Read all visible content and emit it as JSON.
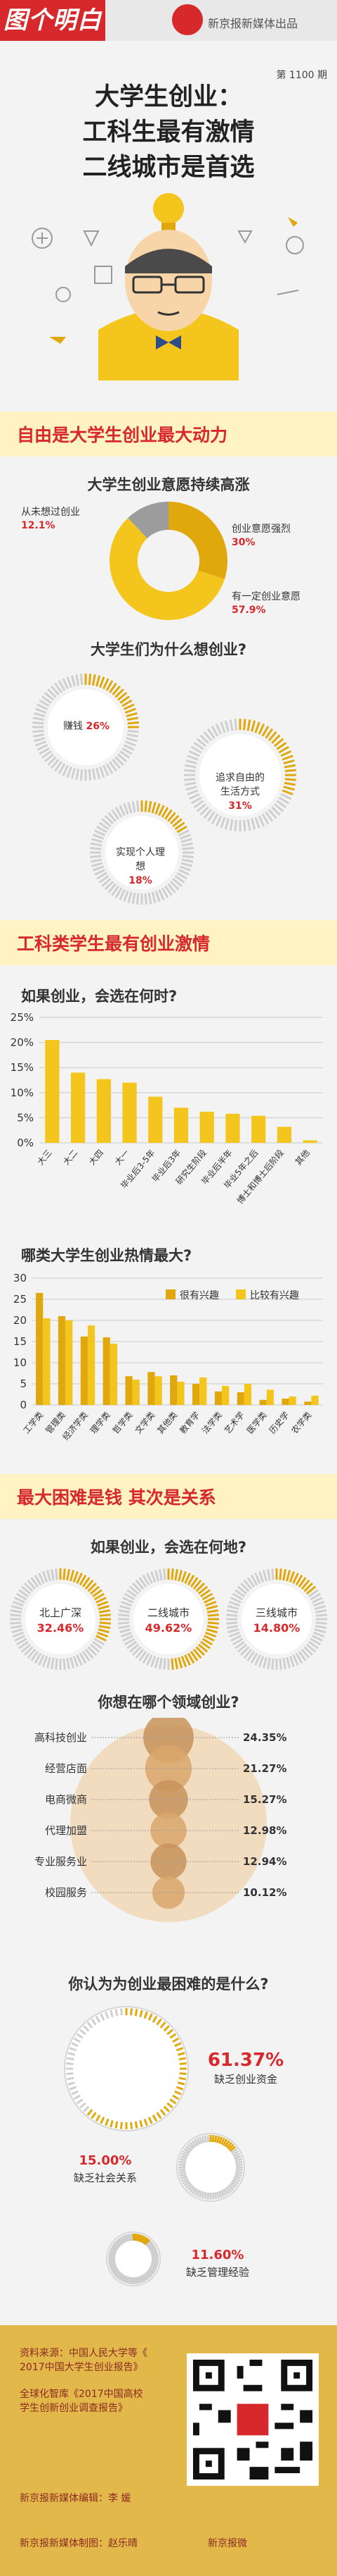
{
  "header": {
    "logo": "图个明白",
    "publisher": "新京报新媒体出品",
    "issue": "第 1100 期"
  },
  "title": {
    "line1": "大学生创业：",
    "line2": "工科生最有激情",
    "line3": "二线城市是首选"
  },
  "section1": {
    "banner": "自由是大学生创业最大动力"
  },
  "section2": {
    "banner": "工科类学生最有创业激情"
  },
  "section3": {
    "banner": "最大困难是钱  其次是关系"
  },
  "colors": {
    "red": "#d7292c",
    "yellow": "#f4c51c",
    "darkYellow": "#e1a80d",
    "gray": "#9c9c9c"
  },
  "footer": {
    "source1": "资料来源：中国人民大学等《",
    "source2": "2017中国大学生创业报告》",
    "source3": "全球化智库《2017中国高校",
    "source4": "学生创新创业调查报告》",
    "editor": "新京报新媒体编辑：李  媛",
    "designer": "新京报新媒体制图：赵乐晴",
    "qr_caption": "新京报微"
  },
  "chart_data": [
    {
      "type": "pie",
      "title": "大学生创业意愿持续高涨",
      "categories": [
        "从未想过创业",
        "创业意愿强烈",
        "有一定创业意愿"
      ],
      "values": [
        12.1,
        30,
        57.9
      ],
      "value_labels": [
        "12.1%",
        "30%",
        "57.9%"
      ]
    },
    {
      "type": "bar",
      "title": "大学生们为什么想创业?",
      "categories": [
        "赚钱",
        "追求自由的生活方式",
        "实现个人理想"
      ],
      "values": [
        26,
        31,
        18
      ],
      "value_labels": [
        "26%",
        "31%",
        "18%"
      ]
    },
    {
      "type": "bar",
      "title": "如果创业，会选在何时?",
      "categories": [
        "大三",
        "大二",
        "大四",
        "大一",
        "毕业后3-5年",
        "毕业后3年",
        "研究生阶段",
        "毕业后半年",
        "毕业5年之后",
        "博士和博士后阶段",
        "其他"
      ],
      "values": [
        20.5,
        14,
        12.7,
        12,
        9.2,
        7,
        6.2,
        5.8,
        5.4,
        3.2,
        0.5
      ],
      "ylim": [
        0,
        25
      ],
      "yticks": [
        "0%",
        "5%",
        "10%",
        "15%",
        "20%",
        "25%"
      ]
    },
    {
      "type": "bar",
      "title": "哪类大学生创业热情最大?",
      "categories": [
        "工学类",
        "管理类",
        "经济学类",
        "理学类",
        "哲学类",
        "文学类",
        "其他类",
        "教育学",
        "法学类",
        "艺术学",
        "医学类",
        "历史学",
        "农学类"
      ],
      "series": [
        {
          "name": "很有兴趣",
          "values": [
            26.5,
            21,
            16.2,
            16,
            6.8,
            7.8,
            7,
            5,
            3.2,
            3,
            1.2,
            1.5,
            0.8
          ]
        },
        {
          "name": "比较有兴趣",
          "values": [
            20.5,
            20,
            18.8,
            14.5,
            6,
            6.8,
            5.5,
            6.5,
            4.5,
            5,
            3.6,
            2,
            2.2
          ]
        }
      ],
      "ylim": [
        0,
        30
      ],
      "yticks": [
        "0",
        "5",
        "10",
        "15",
        "20",
        "25",
        "30"
      ]
    },
    {
      "type": "bar",
      "title": "如果创业，会选在何地?",
      "categories": [
        "北上广深",
        "二线城市",
        "三线城市"
      ],
      "values": [
        32.46,
        49.62,
        14.8
      ],
      "value_labels": [
        "32.46%",
        "49.62%",
        "14.80%"
      ]
    },
    {
      "type": "bar",
      "title": "你想在哪个领域创业?",
      "categories": [
        "高科技创业",
        "经营店面",
        "电商微商",
        "代理加盟",
        "专业服务业",
        "校园服务"
      ],
      "values": [
        24.35,
        21.27,
        15.27,
        12.98,
        12.94,
        10.12
      ],
      "value_labels": [
        "24.35%",
        "21.27%",
        "15.27%",
        "12.98%",
        "12.94%",
        "10.12%"
      ]
    },
    {
      "type": "bar",
      "title": "你认为为创业最困难的是什么?",
      "categories": [
        "缺乏创业资金",
        "缺乏社会关系",
        "缺乏管理经验"
      ],
      "values": [
        61.37,
        15,
        11.6
      ],
      "value_labels": [
        "61.37%",
        "15.00%",
        "11.60%"
      ]
    }
  ]
}
